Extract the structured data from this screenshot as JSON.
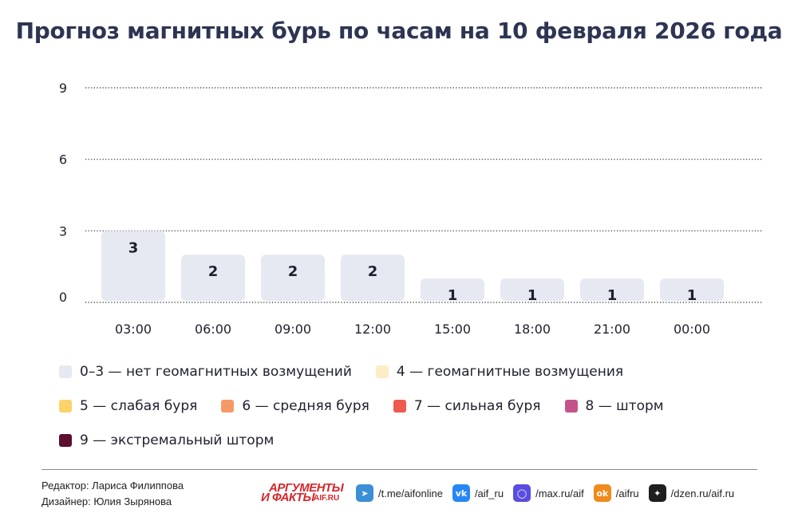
{
  "title": "Прогноз магнитных бурь по часам на 10 февраля 2026 года",
  "chart_data": {
    "type": "bar",
    "categories": [
      "03:00",
      "06:00",
      "09:00",
      "12:00",
      "15:00",
      "18:00",
      "21:00",
      "00:00"
    ],
    "values": [
      3,
      2,
      2,
      2,
      1,
      1,
      1,
      1
    ],
    "yticks": [
      0,
      3,
      6,
      9
    ],
    "ylim": [
      0,
      9
    ],
    "grid": "dotted horizontal",
    "bar_color": "#e6e8f2"
  },
  "legend": [
    [
      {
        "label": "0–3 — нет геомагнитных возмущений",
        "color": "#e6e8f2"
      },
      {
        "label": "4 — геомагнитные возмущения",
        "color": "#fcedc7"
      }
    ],
    [
      {
        "label": "5 — слабая буря",
        "color": "#fbd36a"
      },
      {
        "label": "6 — средняя буря",
        "color": "#f59a66"
      },
      {
        "label": "7 — сильная буря",
        "color": "#ee5a4f"
      },
      {
        "label": "8 — шторм",
        "color": "#c4538c"
      }
    ],
    [
      {
        "label": "9 — экстремальный шторм",
        "color": "#5c0f2e"
      }
    ]
  ],
  "credits": {
    "editor": "Редактор: Лариса Филиппова",
    "designer": "Дизайнер: Юлия Зырянова"
  },
  "logo": {
    "line1": "АРГУМЕНТЫ",
    "line2": "И ФАКТЫ",
    "suffix": "AIF.RU"
  },
  "socials": [
    {
      "icon": "telegram-icon",
      "text": "/t.me/aifonline",
      "color": "#3b8fd6",
      "glyph": "➤"
    },
    {
      "icon": "vk-icon",
      "text": "/aif_ru",
      "color": "#2787f5",
      "glyph": "vk"
    },
    {
      "icon": "max-icon",
      "text": "/max.ru/aif",
      "color": "#5a4de0",
      "glyph": "◯"
    },
    {
      "icon": "odnoklassniki-icon",
      "text": "/aifru",
      "color": "#f08a1c",
      "glyph": "ok"
    },
    {
      "icon": "dzen-icon",
      "text": "/dzen.ru/aif.ru",
      "color": "#1f1f1f",
      "glyph": "✦"
    }
  ]
}
